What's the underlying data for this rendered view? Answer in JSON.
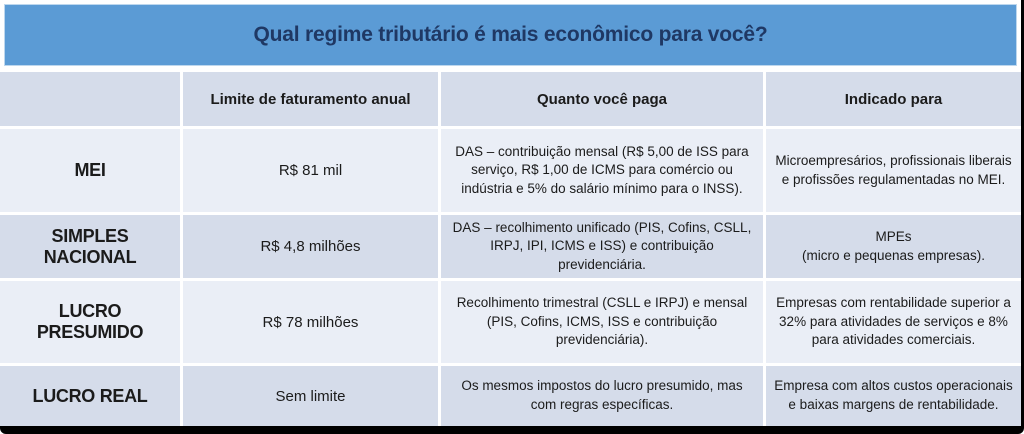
{
  "title": "Qual regime tributário é mais econômico para você?",
  "colors": {
    "banner_bg": "#5b9bd5",
    "banner_border": "#bdd7ee",
    "title_text": "#1f3864",
    "row_dark": "#d5dcea",
    "row_light": "#eaeef6",
    "cell_text": "#1b1b1b",
    "frame_border": "#000000"
  },
  "table": {
    "columns": {
      "regime": "",
      "limite": "Limite de faturamento anual",
      "paga": "Quanto você paga",
      "indicado": "Indicado para"
    },
    "rows": [
      {
        "regime": "MEI",
        "limite": "R$ 81 mil",
        "paga": "DAS – contribuição mensal (R$ 5,00 de ISS para serviço, R$ 1,00 de ICMS para comércio ou indústria e 5% do salário mínimo para o INSS).",
        "indicado": "Microempresários, profissionais liberais e profissões regulamentadas no MEI."
      },
      {
        "regime": "SIMPLES NACIONAL",
        "limite": "R$ 4,8 milhões",
        "paga": "DAS – recolhimento unificado (PIS, Cofins, CSLL, IRPJ, IPI, ICMS e ISS)  e contribuição previdenciária.",
        "indicado": "MPEs\n(micro e pequenas empresas)."
      },
      {
        "regime": "LUCRO PRESUMIDO",
        "limite": "R$ 78 milhões",
        "paga": "Recolhimento trimestral (CSLL e IRPJ) e mensal (PIS, Cofins, ICMS, ISS e contribuição previdenciária).",
        "indicado": "Empresas com rentabilidade superior a 32% para atividades de serviços e 8% para atividades comerciais."
      },
      {
        "regime": "LUCRO REAL",
        "limite": "Sem limite",
        "paga": "Os mesmos impostos do lucro presumido, mas com regras específicas.",
        "indicado": "Empresa com altos custos operacionais e baixas margens de rentabilidade."
      }
    ]
  }
}
